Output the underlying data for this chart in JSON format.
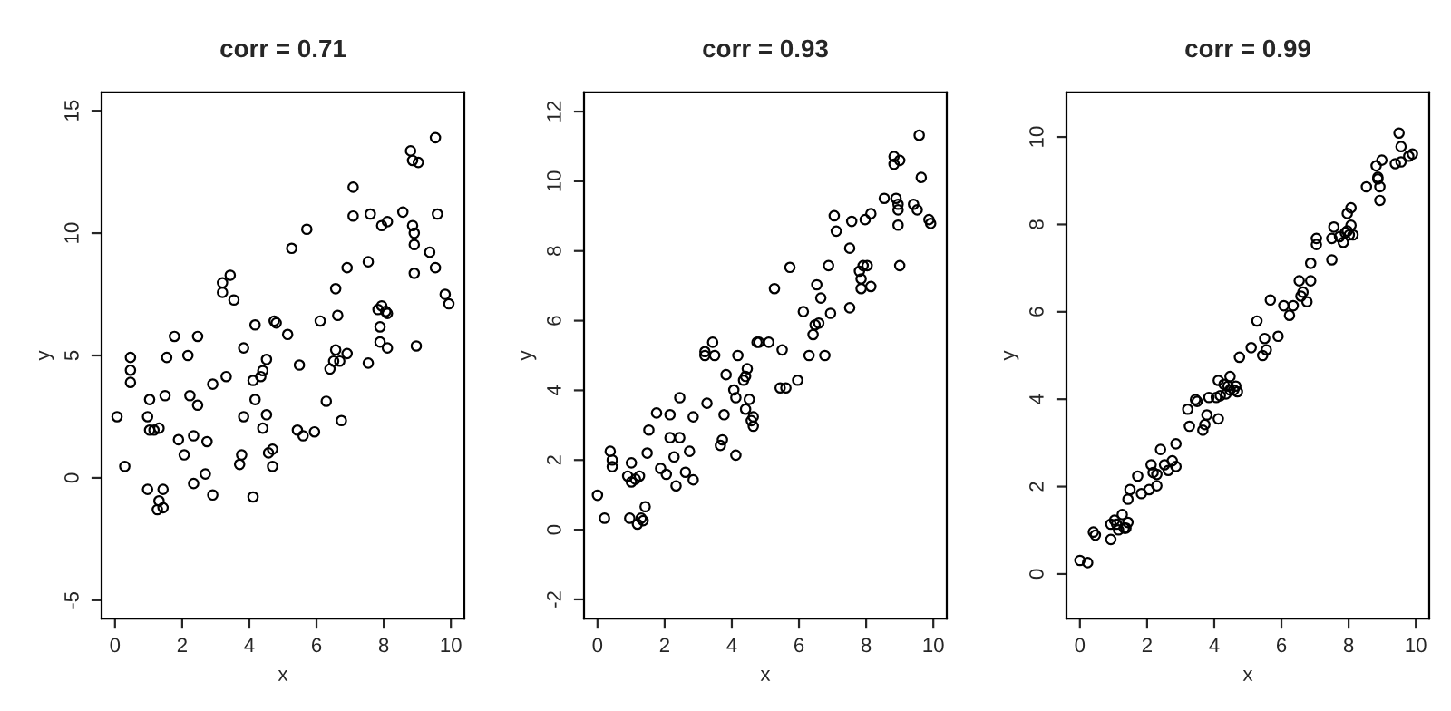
{
  "chart_data": [
    {
      "type": "scatter",
      "title": "corr = 0.71",
      "xlabel": "x",
      "ylabel": "y",
      "xlim": [
        -0.4,
        10.4
      ],
      "ylim": [
        -5.75,
        15.75
      ],
      "xticks": [
        0,
        2,
        4,
        6,
        8,
        10
      ],
      "yticks": [
        -5,
        0,
        5,
        10,
        15
      ],
      "marker": "circle",
      "series": [
        {
          "color": "#000000",
          "x": [
            0.06,
            0.29,
            0.46,
            0.46,
            0.46,
            0.97,
            1.03,
            1.03,
            1.16,
            1.31,
            0.97,
            1.43,
            1.31,
            1.26,
            1.43,
            1.49,
            1.54,
            1.77,
            1.89,
            2.06,
            2.17,
            2.23,
            2.34,
            2.46,
            2.46,
            2.34,
            2.69,
            2.74,
            2.91,
            2.91,
            3.2,
            3.2,
            3.43,
            3.54,
            3.31,
            3.71,
            3.77,
            3.83,
            3.83,
            4.11,
            4.11,
            4.17,
            4.17,
            4.34,
            4.4,
            4.4,
            4.51,
            4.51,
            4.57,
            4.69,
            4.69,
            4.74,
            4.8,
            5.14,
            5.26,
            5.43,
            5.49,
            5.6,
            5.71,
            5.94,
            6.11,
            6.29,
            6.4,
            6.51,
            6.57,
            6.57,
            6.63,
            6.69,
            6.74,
            6.91,
            6.91,
            7.09,
            7.09,
            7.54,
            7.54,
            7.6,
            7.83,
            7.89,
            7.89,
            7.94,
            7.94,
            8.06,
            8.11,
            8.11,
            8.11,
            8.57,
            8.8,
            8.86,
            8.86,
            8.91,
            8.91,
            8.91,
            8.97,
            9.03,
            9.37,
            9.54,
            9.54,
            9.6,
            9.83,
            9.94
          ],
          "values": [
            2.5,
            0.47,
            4.92,
            4.4,
            3.9,
            2.5,
            3.2,
            1.95,
            1.95,
            2.03,
            -0.47,
            -0.47,
            -0.94,
            -1.3,
            -1.22,
            3.36,
            4.92,
            5.78,
            1.56,
            0.94,
            5.0,
            3.36,
            1.72,
            2.97,
            5.78,
            -0.23,
            0.16,
            1.48,
            3.83,
            -0.7,
            7.97,
            7.58,
            8.28,
            7.27,
            4.14,
            0.55,
            0.94,
            2.5,
            5.31,
            -0.78,
            3.98,
            6.25,
            3.2,
            4.14,
            2.03,
            4.38,
            4.84,
            2.58,
            1.02,
            1.17,
            0.47,
            6.41,
            6.33,
            5.86,
            9.38,
            1.95,
            4.61,
            1.72,
            10.16,
            1.88,
            6.41,
            3.13,
            4.45,
            4.77,
            7.73,
            5.23,
            6.64,
            4.77,
            2.34,
            8.59,
            5.08,
            11.88,
            10.7,
            8.83,
            4.69,
            10.78,
            6.88,
            6.17,
            5.55,
            10.31,
            7.03,
            6.8,
            6.72,
            10.47,
            5.31,
            10.86,
            13.36,
            12.97,
            10.31,
            10.0,
            9.53,
            8.36,
            5.39,
            12.89,
            9.22,
            13.9,
            8.59,
            10.78,
            7.5,
            7.11
          ]
        }
      ]
    },
    {
      "type": "scatter",
      "title": "corr = 0.93",
      "xlabel": "x",
      "ylabel": "y",
      "xlim": [
        -0.4,
        10.4
      ],
      "ylim": [
        -2.55,
        12.55
      ],
      "xticks": [
        0,
        2,
        4,
        6,
        8,
        10
      ],
      "yticks": [
        -2,
        0,
        2,
        4,
        6,
        8,
        10,
        12
      ],
      "marker": "circle",
      "series": [
        {
          "color": "#000000",
          "x": [
            0,
            0.21,
            0.38,
            0.44,
            0.44,
            0.9,
            1.01,
            1.01,
            1.13,
            1.25,
            0.96,
            1.19,
            1.3,
            1.36,
            1.42,
            1.48,
            1.53,
            1.76,
            1.88,
            2.05,
            2.16,
            2.16,
            2.28,
            2.34,
            2.45,
            2.45,
            2.62,
            2.74,
            2.85,
            2.85,
            3.2,
            3.2,
            3.26,
            3.43,
            3.49,
            3.66,
            3.72,
            3.77,
            3.83,
            4.06,
            4.12,
            4.12,
            4.18,
            4.35,
            4.41,
            4.46,
            4.41,
            4.52,
            4.58,
            4.64,
            4.64,
            4.75,
            4.81,
            5.1,
            5.27,
            5.44,
            5.5,
            5.61,
            5.73,
            5.96,
            6.13,
            6.3,
            6.42,
            6.48,
            6.59,
            6.53,
            6.65,
            6.77,
            6.88,
            6.94,
            7.05,
            7.11,
            7.51,
            7.51,
            7.57,
            7.8,
            7.85,
            7.85,
            7.91,
            7.97,
            8.03,
            8.14,
            8.14,
            8.54,
            8.83,
            8.83,
            9.0,
            8.89,
            8.95,
            8.95,
            8.95,
            9.0,
            9.41,
            9.52,
            9.58,
            9.64,
            9.87,
            9.92
          ],
          "values": [
            0.99,
            0.33,
            2.25,
            2.0,
            1.81,
            1.54,
            1.92,
            1.37,
            1.45,
            1.54,
            0.33,
            0.16,
            0.33,
            0.26,
            0.66,
            2.2,
            2.86,
            3.35,
            1.76,
            1.59,
            3.3,
            2.64,
            2.09,
            1.26,
            3.79,
            2.64,
            1.65,
            2.25,
            3.24,
            1.43,
            5.11,
            5.0,
            3.63,
            5.38,
            5.0,
            2.42,
            2.58,
            3.3,
            4.45,
            4.01,
            3.79,
            2.14,
            5.0,
            4.29,
            4.4,
            4.62,
            3.46,
            3.74,
            3.13,
            3.24,
            2.97,
            5.38,
            5.38,
            5.38,
            6.92,
            4.07,
            5.16,
            4.07,
            7.53,
            4.29,
            6.26,
            5.0,
            5.6,
            5.88,
            5.93,
            7.03,
            6.65,
            5.0,
            7.58,
            6.21,
            9.01,
            8.57,
            8.08,
            6.37,
            8.85,
            7.42,
            7.2,
            6.92,
            7.58,
            8.9,
            7.58,
            6.98,
            9.07,
            9.51,
            10.71,
            10.49,
            10.6,
            9.51,
            9.34,
            9.18,
            8.74,
            7.58,
            9.34,
            9.18,
            11.32,
            10.11,
            8.9,
            8.79
          ]
        }
      ]
    },
    {
      "type": "scatter",
      "title": "corr = 0.99",
      "xlabel": "x",
      "ylabel": "y",
      "xlim": [
        -0.4,
        10.4
      ],
      "ylim": [
        -1.02,
        11.02
      ],
      "xticks": [
        0,
        2,
        4,
        6,
        8,
        10
      ],
      "yticks": [
        0,
        2,
        4,
        6,
        8,
        10
      ],
      "marker": "circle",
      "series": [
        {
          "color": "#000000",
          "x": [
            0,
            0.23,
            0.4,
            0.46,
            0.92,
            0.92,
            1.03,
            1.09,
            1.15,
            1.26,
            1.32,
            1.37,
            1.43,
            1.43,
            1.49,
            1.72,
            1.83,
            2.06,
            2.12,
            2.18,
            2.29,
            2.29,
            2.4,
            2.52,
            2.63,
            2.75,
            2.86,
            2.86,
            3.21,
            3.26,
            3.44,
            3.49,
            3.66,
            3.72,
            3.78,
            3.84,
            4.06,
            4.12,
            4.12,
            4.18,
            4.29,
            4.35,
            4.41,
            4.47,
            4.47,
            4.58,
            4.64,
            4.69,
            4.75,
            5.1,
            5.27,
            5.44,
            5.5,
            5.55,
            5.67,
            5.9,
            6.07,
            6.24,
            6.35,
            6.53,
            6.58,
            6.64,
            6.76,
            6.87,
            6.87,
            7.04,
            7.04,
            7.5,
            7.5,
            7.56,
            7.73,
            7.84,
            7.9,
            7.96,
            8.02,
            8.07,
            7.96,
            8.07,
            8.13,
            8.53,
            8.82,
            8.87,
            8.87,
            8.93,
            8.93,
            8.99,
            9.39,
            9.5,
            9.56,
            9.56,
            9.79,
            9.9
          ],
          "values": [
            0.31,
            0.26,
            0.96,
            0.89,
            0.79,
            1.14,
            1.23,
            1.14,
            1.01,
            1.36,
            1.05,
            1.05,
            1.18,
            1.71,
            1.93,
            2.24,
            1.84,
            1.93,
            2.5,
            2.32,
            2.02,
            2.28,
            2.85,
            2.5,
            2.37,
            2.59,
            2.46,
            2.98,
            3.77,
            3.38,
            3.99,
            3.95,
            3.29,
            3.42,
            3.64,
            4.04,
            4.04,
            3.55,
            4.43,
            4.08,
            4.34,
            4.12,
            4.3,
            4.52,
            4.21,
            4.21,
            4.3,
            4.17,
            4.96,
            5.18,
            5.79,
            5.0,
            5.39,
            5.13,
            6.27,
            5.44,
            6.14,
            5.92,
            6.14,
            6.71,
            6.36,
            6.45,
            6.23,
            6.71,
            7.11,
            7.68,
            7.54,
            7.19,
            7.68,
            7.94,
            7.72,
            7.59,
            7.81,
            7.85,
            7.76,
            7.98,
            8.25,
            8.38,
            7.76,
            8.86,
            9.34,
            9.04,
            9.08,
            8.86,
            8.55,
            9.47,
            9.39,
            10.09,
            9.78,
            9.43,
            9.56,
            9.61
          ]
        }
      ]
    }
  ]
}
